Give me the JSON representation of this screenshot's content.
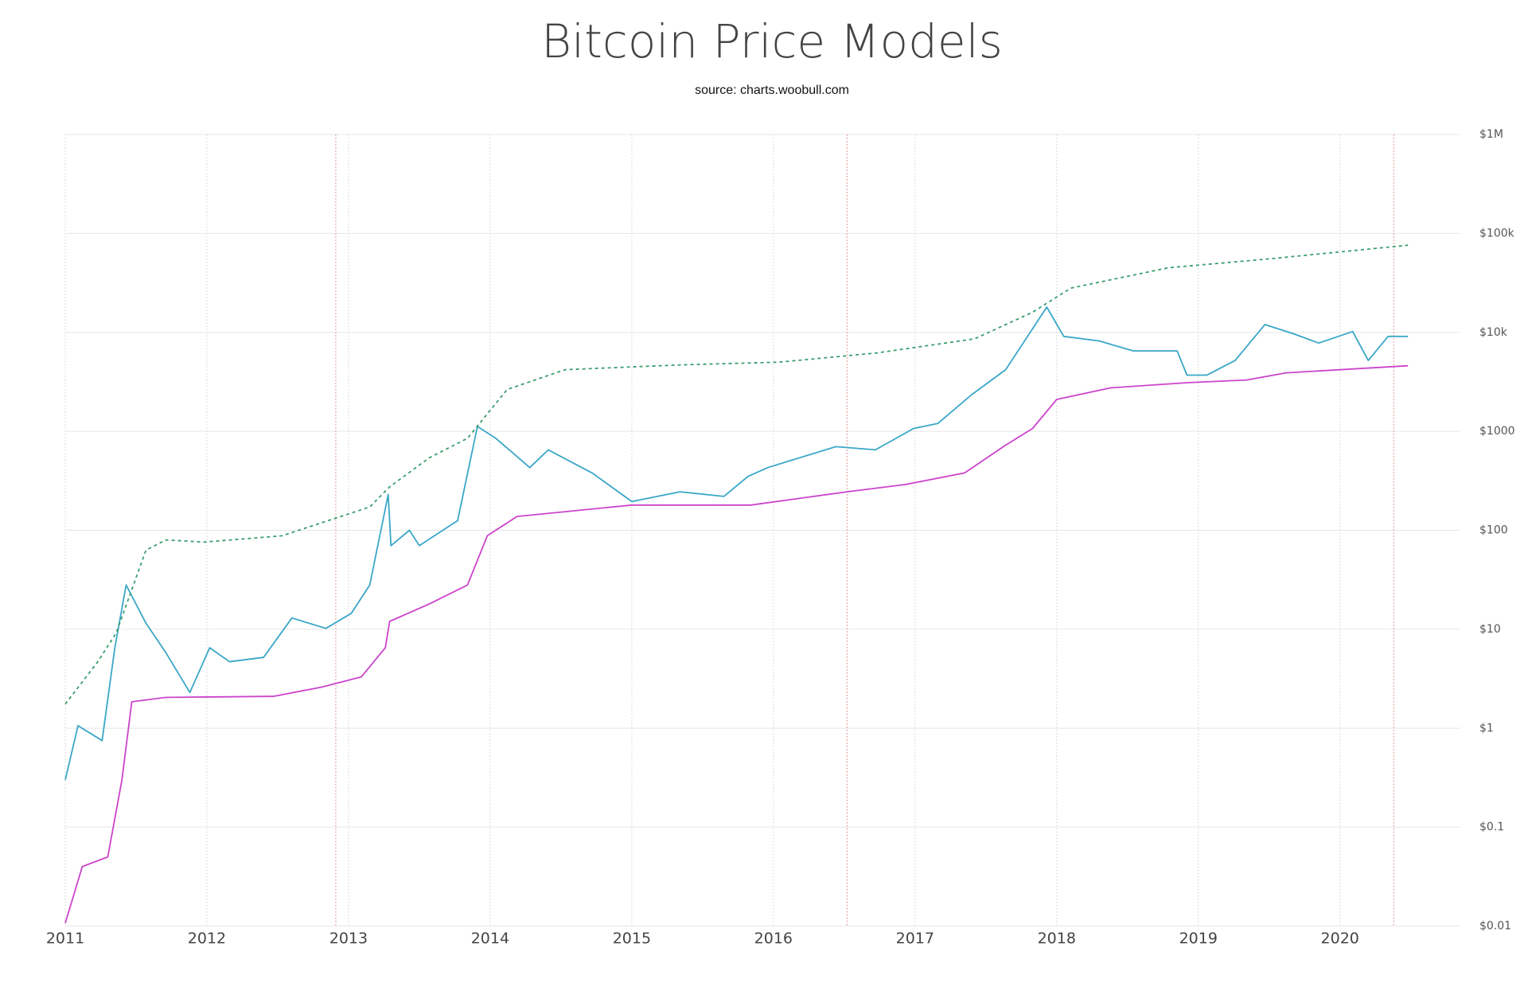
{
  "chart_data": {
    "type": "line",
    "title": "Bitcoin Price Models",
    "subtitle": "source: charts.woobull.com",
    "log_y": true,
    "grid": true,
    "xlim": [
      2011,
      2020.85
    ],
    "xticks": [
      2011,
      2012,
      2013,
      2014,
      2015,
      2016,
      2017,
      2018,
      2019,
      2020
    ],
    "ylim": [
      0.01,
      1000000
    ],
    "yticks": [
      {
        "value": 0.01,
        "label": "$0.01"
      },
      {
        "value": 0.1,
        "label": "$0.1"
      },
      {
        "value": 1,
        "label": "$1"
      },
      {
        "value": 10,
        "label": "$10"
      },
      {
        "value": 100,
        "label": "$100"
      },
      {
        "value": 1000,
        "label": "$1000"
      },
      {
        "value": 10000,
        "label": "$10k"
      },
      {
        "value": 100000,
        "label": "$100k"
      },
      {
        "value": 1000000,
        "label": "$1M"
      }
    ],
    "vlines": [
      2012.91,
      2016.52,
      2020.38
    ],
    "vline_color": "#e8a8a8",
    "series": [
      {
        "color": "#3aa7c7",
        "dashed": false,
        "x": [
          2011.0,
          2011.09,
          2011.26,
          2011.35,
          2011.43,
          2011.57,
          2011.71,
          2011.88,
          2012.02,
          2012.16,
          2012.4,
          2012.6,
          2012.84,
          2013.02,
          2013.15,
          2013.28,
          2013.3,
          2013.43,
          2013.5,
          2013.77,
          2013.91,
          2014.04,
          2014.28,
          2014.41,
          2014.72,
          2015.0,
          2015.34,
          2015.65,
          2015.82,
          2015.96,
          2016.44,
          2016.72,
          2016.99,
          2017.16,
          2017.4,
          2017.64,
          2017.93,
          2018.05,
          2018.3,
          2018.54,
          2018.85,
          2018.92,
          2019.06,
          2019.26,
          2019.47,
          2019.68,
          2019.85,
          2020.09,
          2020.2,
          2020.34,
          2020.48
        ],
        "values": [
          0.3,
          1.06,
          0.75,
          6.5,
          28,
          11.5,
          5.8,
          2.3,
          6.5,
          4.7,
          5.2,
          13,
          10.2,
          14.5,
          28,
          230,
          70,
          100,
          70,
          125,
          1120,
          850,
          430,
          650,
          380,
          195,
          245,
          220,
          350,
          430,
          700,
          650,
          1070,
          1200,
          2350,
          4200,
          18000,
          9100,
          8200,
          6500,
          6500,
          3700,
          3700,
          5200,
          12000,
          9600,
          7800,
          10200,
          5200,
          9100,
          9100
        ]
      },
      {
        "color": "#3a9e6e",
        "dashed": true,
        "x": [
          2011.0,
          2011.23,
          2011.36,
          2011.57,
          2011.71,
          2011.98,
          2012.53,
          2013.15,
          2013.29,
          2013.57,
          2013.84,
          2014.12,
          2014.53,
          2015.36,
          2016.04,
          2016.73,
          2017.42,
          2017.83,
          2018.1,
          2018.79,
          2019.48,
          2020.48
        ],
        "values": [
          1.75,
          4.7,
          9.2,
          63,
          80,
          76,
          88,
          172,
          275,
          540,
          850,
          2650,
          4200,
          4700,
          5000,
          6200,
          8600,
          16000,
          28000,
          45000,
          55000,
          76000
        ]
      },
      {
        "color": "#cc44cc",
        "dashed": false,
        "x": [
          2011.0,
          2011.12,
          2011.3,
          2011.4,
          2011.47,
          2011.71,
          2012.47,
          2012.81,
          2013.09,
          2013.26,
          2013.29,
          2013.57,
          2013.84,
          2013.98,
          2014.19,
          2015.0,
          2015.84,
          2016.52,
          2016.93,
          2017.35,
          2017.63,
          2017.83,
          2018.0,
          2018.38,
          2018.92,
          2019.34,
          2019.62,
          2020.48
        ],
        "values": [
          0.0107,
          0.04,
          0.05,
          0.3,
          1.85,
          2.05,
          2.1,
          2.6,
          3.3,
          6.5,
          12,
          18,
          28,
          88,
          138,
          180,
          180,
          245,
          290,
          380,
          710,
          1070,
          2100,
          2750,
          3100,
          3300,
          3900,
          4600
        ]
      }
    ]
  }
}
